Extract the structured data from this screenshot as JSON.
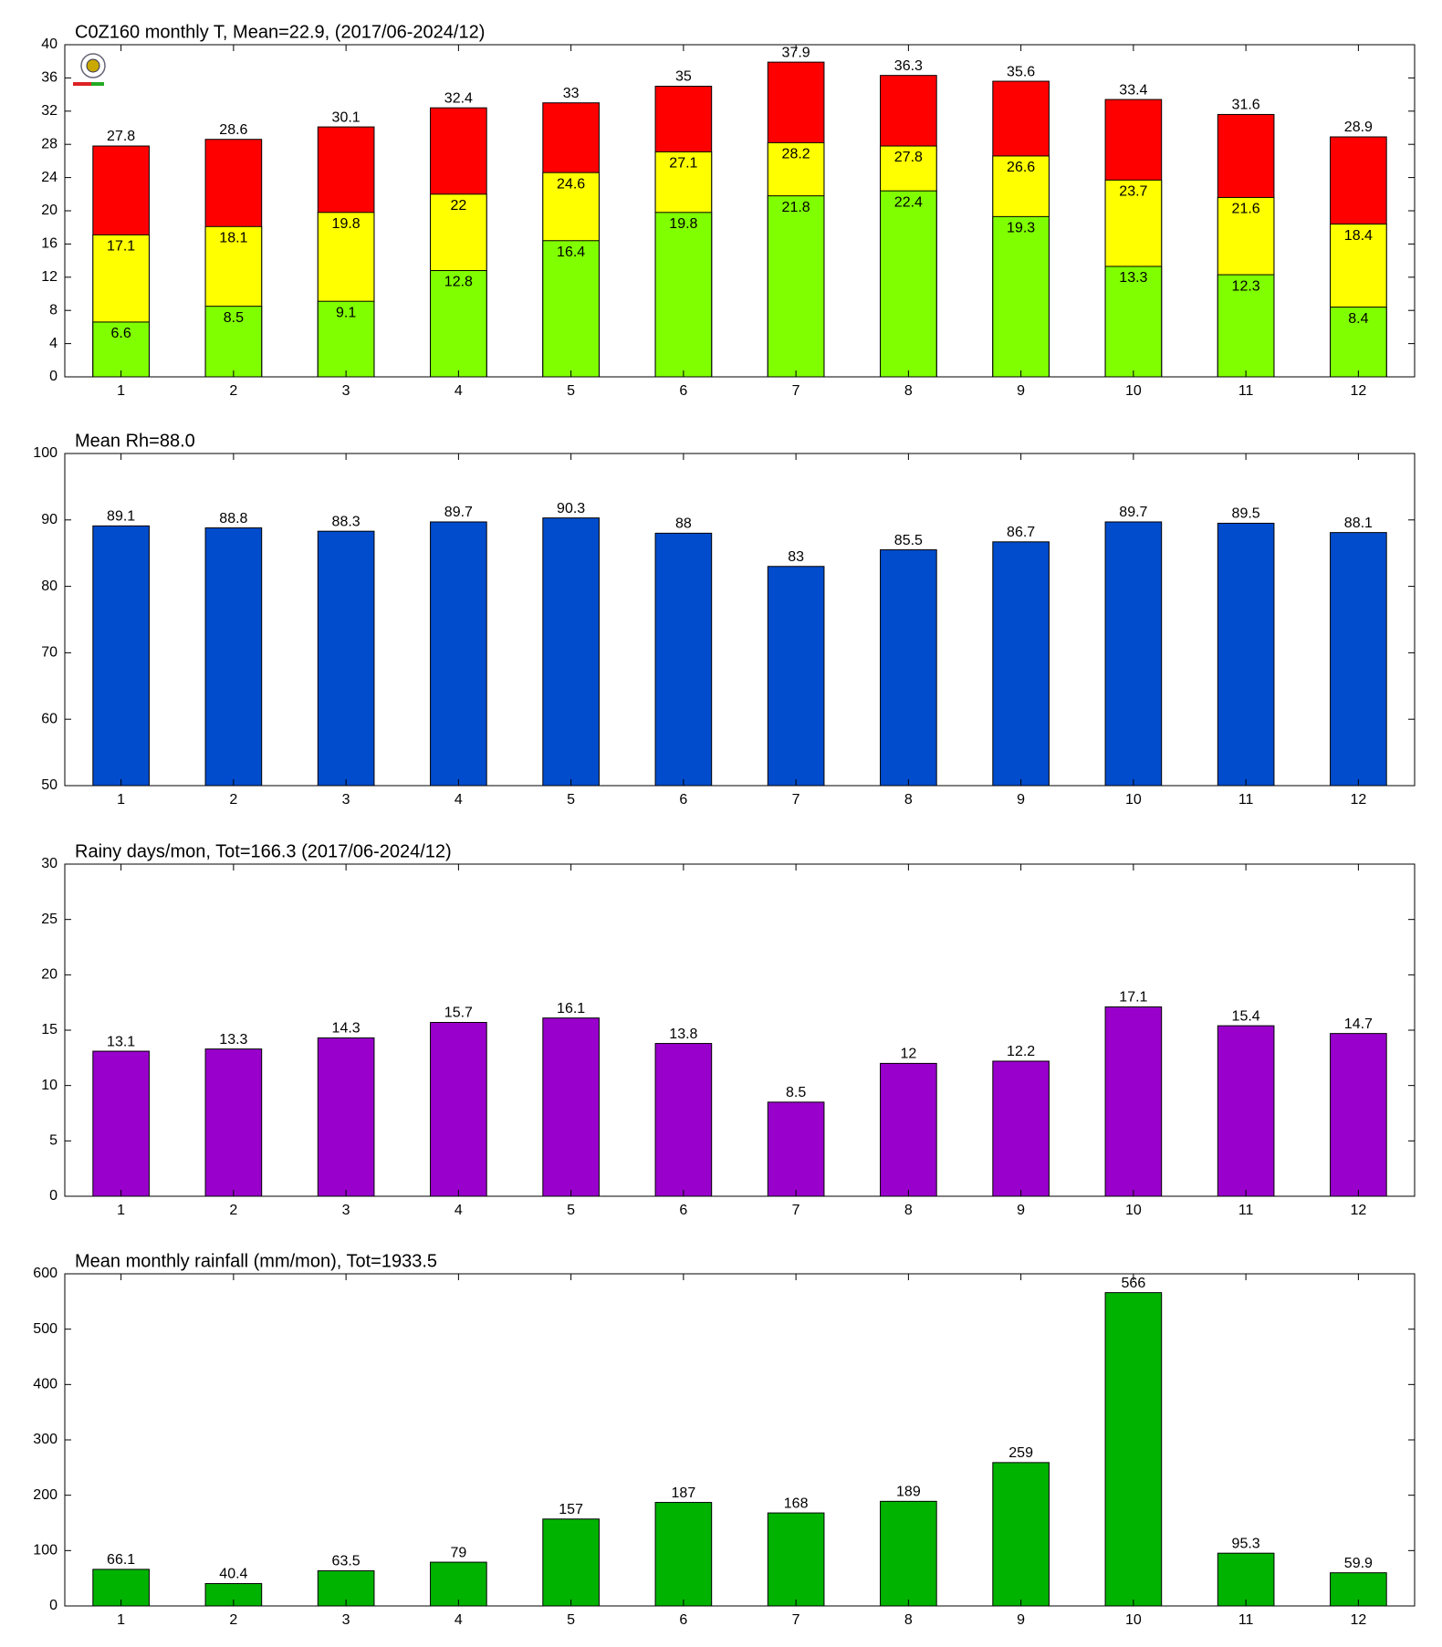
{
  "chart_data": [
    {
      "type": "bar",
      "title": "C0Z160 monthly T, Mean=22.9, (2017/06-2024/12)",
      "categories": [
        "1",
        "2",
        "3",
        "4",
        "5",
        "6",
        "7",
        "8",
        "9",
        "10",
        "11",
        "12"
      ],
      "series": [
        {
          "color": "#ff0000",
          "values": [
            27.8,
            28.6,
            30.1,
            32.4,
            33,
            35,
            37.9,
            36.3,
            35.6,
            33.4,
            31.6,
            28.9
          ]
        },
        {
          "color": "#ffff00",
          "values": [
            17.1,
            18.1,
            19.8,
            22,
            24.6,
            27.1,
            28.2,
            27.8,
            26.6,
            23.7,
            21.6,
            18.4
          ]
        },
        {
          "color": "#80ff00",
          "values": [
            6.6,
            8.5,
            9.1,
            12.8,
            16.4,
            19.8,
            21.8,
            22.4,
            19.3,
            13.3,
            12.3,
            8.4
          ]
        }
      ],
      "ylim": [
        0,
        40
      ],
      "yticks": [
        0,
        4,
        8,
        12,
        16,
        20,
        24,
        28,
        32,
        36,
        40
      ]
    },
    {
      "type": "bar",
      "title": "Mean Rh=88.0",
      "categories": [
        "1",
        "2",
        "3",
        "4",
        "5",
        "6",
        "7",
        "8",
        "9",
        "10",
        "11",
        "12"
      ],
      "values": [
        89.1,
        88.8,
        88.3,
        89.7,
        90.3,
        88,
        83,
        85.5,
        86.7,
        89.7,
        89.5,
        88.1
      ],
      "color": "#004ccc",
      "ylim": [
        50,
        100
      ],
      "yticks": [
        50,
        60,
        70,
        80,
        90,
        100
      ]
    },
    {
      "type": "bar",
      "title": "Rainy days/mon, Tot=166.3 (2017/06-2024/12)",
      "categories": [
        "1",
        "2",
        "3",
        "4",
        "5",
        "6",
        "7",
        "8",
        "9",
        "10",
        "11",
        "12"
      ],
      "values": [
        13.1,
        13.3,
        14.3,
        15.7,
        16.1,
        13.8,
        8.5,
        12,
        12.2,
        17.1,
        15.4,
        14.7
      ],
      "color": "#9900cc",
      "ylim": [
        0,
        30
      ],
      "yticks": [
        0,
        5,
        10,
        15,
        20,
        25,
        30
      ]
    },
    {
      "type": "bar",
      "title": "Mean monthly rainfall (mm/mon), Tot=1933.5",
      "categories": [
        "1",
        "2",
        "3",
        "4",
        "5",
        "6",
        "7",
        "8",
        "9",
        "10",
        "11",
        "12"
      ],
      "values": [
        66.1,
        40.4,
        63.5,
        79,
        157,
        187,
        168,
        189,
        259,
        566,
        95.3,
        59.9
      ],
      "color": "#00b300",
      "ylim": [
        0,
        600
      ],
      "yticks": [
        0,
        100,
        200,
        300,
        400,
        500,
        600
      ]
    }
  ]
}
